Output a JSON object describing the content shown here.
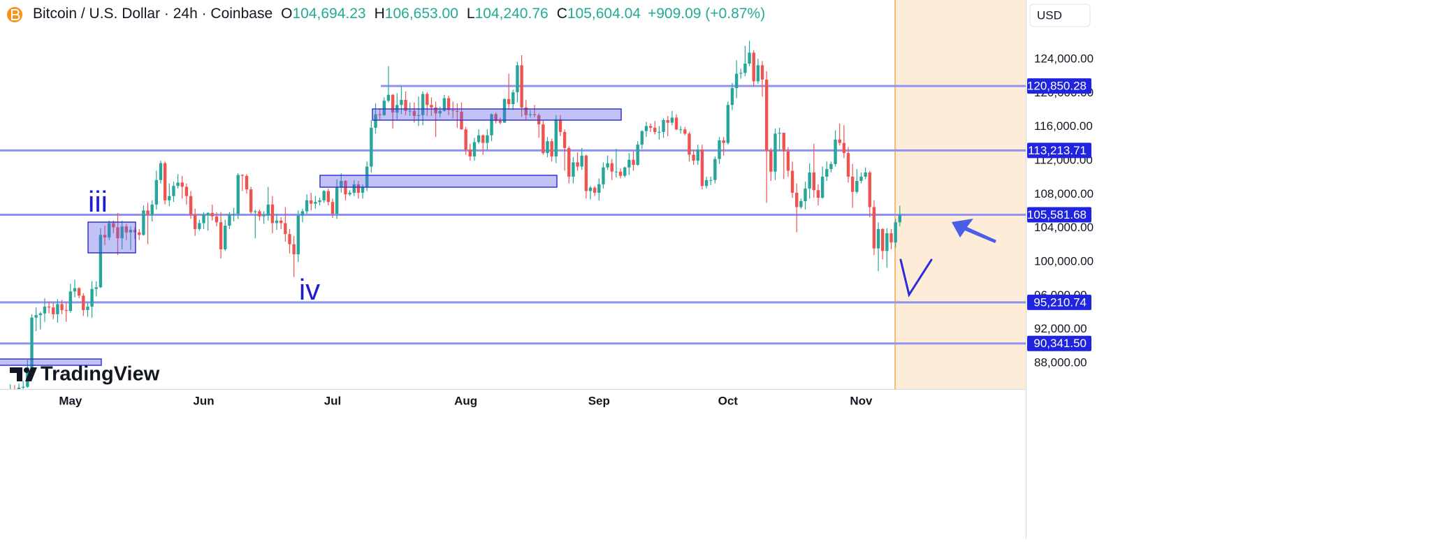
{
  "chart_data": {
    "type": "candlestick",
    "title": "Bitcoin / U.S. Dollar · 24h · Coinbase",
    "legend": [
      {
        "label": "O",
        "value": "104,694.23"
      },
      {
        "label": "H",
        "value": "106,653.00"
      },
      {
        "label": "L",
        "value": "104,240.76"
      },
      {
        "label": "C",
        "value": "105,604.04"
      }
    ],
    "change": "+909.09 (+0.87%)",
    "currency": "USD",
    "watermark": "TradingView",
    "annotations": [
      "iii",
      "iv"
    ],
    "up_color": "#26a69a",
    "down_color": "#ef5350",
    "level_color": "#8e92f2",
    "level_label_color": "#2124de",
    "xlim": [
      -2.4,
      236.3
    ],
    "xticks": [
      {
        "value": 14,
        "label": "May"
      },
      {
        "value": 45,
        "label": "Jun"
      },
      {
        "value": 75,
        "label": "Jul"
      },
      {
        "value": 106,
        "label": "Aug"
      },
      {
        "value": 137,
        "label": "Sep"
      },
      {
        "value": 167,
        "label": "Oct"
      },
      {
        "value": 198,
        "label": "Nov"
      }
    ],
    "ylim": [
      84938,
      131035
    ],
    "yticks": [
      {
        "value": 88000,
        "label": "88,000.00"
      },
      {
        "value": 92000,
        "label": "92,000.00"
      },
      {
        "value": 96000,
        "label": "96,000.00"
      },
      {
        "value": 100000,
        "label": "100,000.00"
      },
      {
        "value": 104000,
        "label": "104,000.00"
      },
      {
        "value": 108000,
        "label": "108,000.00"
      },
      {
        "value": 112000,
        "label": "112,000.00"
      },
      {
        "value": 116000,
        "label": "116,000.00"
      },
      {
        "value": 120000,
        "label": "120,000.00"
      },
      {
        "value": 124000,
        "label": "124,000.00"
      }
    ],
    "grid": false,
    "levels": [
      {
        "value": 120850.28,
        "label": "120,850.28"
      },
      {
        "value": 113213.71,
        "label": "113,213.71"
      },
      {
        "value": 105581.68,
        "label": "105,581.68"
      },
      {
        "value": 95210.74,
        "label": "95,210.74"
      },
      {
        "value": 90341.5,
        "label": "90,341.50"
      }
    ],
    "open": [
      84500,
      84900,
      84500,
      85100,
      85200,
      87500,
      93400,
      93700,
      93900,
      94700,
      94600,
      93800,
      95000,
      94300,
      94200,
      96500,
      96900,
      96000,
      94300,
      94700,
      96800,
      97000,
      103200,
      102900,
      104600,
      104100,
      102800,
      104200,
      103500,
      103800,
      103500,
      103200,
      106100,
      105600,
      106800,
      109700,
      111700,
      107300,
      107800,
      109000,
      109400,
      108900,
      107800,
      105600,
      103900,
      104600,
      105600,
      105800,
      105400,
      104700,
      101500,
      104300,
      105600,
      105700,
      110300,
      110200,
      108600,
      105900,
      106000,
      105400,
      105500,
      106800,
      104600,
      104900,
      104600,
      103300,
      102100,
      100900,
      105500,
      106000,
      107300,
      106900,
      107100,
      107300,
      108400,
      107100,
      105700,
      108800,
      109600,
      108000,
      108200,
      109200,
      108200,
      108900,
      111300,
      115900,
      117500,
      117400,
      119100,
      119800,
      117700,
      118600,
      119200,
      117900,
      117900,
      117300,
      117400,
      119900,
      118600,
      118300,
      117600,
      117900,
      119400,
      118000,
      117900,
      117800,
      115700,
      113300,
      112500,
      114200,
      115000,
      114100,
      115000,
      117500,
      116700,
      116500,
      119300,
      118700,
      120100,
      123300,
      118300,
      117400,
      117500,
      117400,
      116300,
      112900,
      114300,
      112500,
      116900,
      115400,
      113500,
      110100,
      111800,
      111300,
      112600,
      108400,
      108800,
      108200,
      109200,
      111200,
      111700,
      110700,
      110700,
      110200,
      111200,
      112100,
      111500,
      113900,
      115500,
      116100,
      115900,
      115400,
      115400,
      116800,
      116500,
      117100,
      115700,
      115700,
      115200,
      112700,
      112000,
      113300,
      109000,
      109700,
      109700,
      112200,
      114400,
      114100,
      118600,
      120600,
      122300,
      122400,
      123500,
      124800,
      121400,
      123300,
      121600,
      113200,
      110700,
      115200,
      115300,
      113100,
      110800,
      108200,
      106500,
      107200,
      108700,
      110600,
      108500,
      107600,
      110100,
      111000,
      111600,
      114500,
      114100,
      112900,
      110100,
      108300,
      109600,
      110100,
      110600,
      106500,
      101600,
      103900,
      101300,
      103400,
      102300,
      104694.23
    ],
    "high": [
      85500,
      85400,
      85600,
      85900,
      88400,
      93800,
      94600,
      94100,
      95700,
      95300,
      95200,
      95600,
      95500,
      95200,
      97400,
      97900,
      97000,
      96300,
      95200,
      97700,
      97700,
      104000,
      104300,
      104900,
      104900,
      105800,
      104900,
      104500,
      104200,
      104100,
      103900,
      106700,
      107000,
      107300,
      110800,
      112000,
      111900,
      109300,
      109500,
      110400,
      110200,
      109300,
      108400,
      106300,
      105000,
      105900,
      105900,
      106800,
      105900,
      105900,
      105000,
      105900,
      106400,
      110500,
      110400,
      110400,
      108900,
      106200,
      106200,
      106000,
      108900,
      107800,
      105600,
      105300,
      106500,
      103900,
      103100,
      106100,
      106300,
      108000,
      108200,
      107800,
      107600,
      108500,
      108700,
      107500,
      109800,
      110500,
      109700,
      108500,
      109700,
      109600,
      109200,
      111900,
      116800,
      118800,
      118200,
      119500,
      123200,
      119900,
      120000,
      120800,
      120200,
      118900,
      118900,
      119600,
      120200,
      120100,
      119500,
      119000,
      118400,
      119800,
      119700,
      119000,
      118800,
      118900,
      116000,
      114000,
      114700,
      115700,
      115100,
      115700,
      117600,
      117700,
      117100,
      119400,
      122300,
      120400,
      123700,
      124500,
      119200,
      118000,
      118600,
      117600,
      116800,
      114800,
      114600,
      117400,
      117400,
      115700,
      113700,
      112400,
      113000,
      113500,
      112700,
      109000,
      109000,
      109900,
      111800,
      112600,
      112200,
      113400,
      111100,
      111300,
      112900,
      113100,
      114300,
      115600,
      116600,
      116400,
      116700,
      116100,
      117000,
      117300,
      117900,
      117500,
      116100,
      116000,
      115400,
      113300,
      113900,
      113900,
      110100,
      110100,
      112500,
      114800,
      114800,
      119000,
      121200,
      123900,
      122900,
      125600,
      126200,
      125100,
      124100,
      123800,
      122600,
      113500,
      115800,
      115900,
      115300,
      113600,
      111900,
      109300,
      107500,
      109500,
      111700,
      114000,
      109200,
      111300,
      111900,
      111900,
      115600,
      116400,
      116200,
      113600,
      111600,
      111000,
      110600,
      111200,
      110800,
      107300,
      104700,
      104000,
      104000,
      103900,
      105100,
      106653
    ],
    "low": [
      84100,
      84000,
      84300,
      83900,
      85100,
      87200,
      91800,
      92000,
      92900,
      93900,
      93200,
      92800,
      93800,
      92900,
      94000,
      95800,
      95700,
      93600,
      93500,
      93400,
      95900,
      96900,
      102000,
      102600,
      103400,
      100800,
      101500,
      102600,
      101400,
      102700,
      102600,
      103100,
      102100,
      104800,
      106200,
      109300,
      106800,
      106600,
      107100,
      108700,
      107500,
      106800,
      105100,
      103100,
      103700,
      103900,
      103700,
      104900,
      104200,
      100400,
      101300,
      103900,
      104800,
      105100,
      108400,
      108100,
      105700,
      102800,
      104900,
      104500,
      104900,
      103400,
      103800,
      103900,
      102400,
      101000,
      98200,
      100000,
      104700,
      105700,
      106100,
      106300,
      106700,
      107000,
      106700,
      105200,
      105100,
      108200,
      107300,
      107800,
      107800,
      107500,
      107500,
      108400,
      110600,
      115200,
      116900,
      117300,
      118900,
      115800,
      116900,
      117500,
      117400,
      117300,
      116500,
      116100,
      116200,
      117300,
      117300,
      114800,
      117100,
      117800,
      117400,
      117000,
      115900,
      115700,
      112700,
      112000,
      112000,
      114000,
      112700,
      113300,
      114300,
      116400,
      116300,
      116500,
      118100,
      118000,
      118900,
      117200,
      116800,
      117100,
      117100,
      114700,
      112700,
      112400,
      111900,
      111700,
      114900,
      110800,
      109300,
      109300,
      110800,
      110900,
      107500,
      107400,
      107800,
      107300,
      108700,
      110900,
      109700,
      110000,
      109900,
      110000,
      110300,
      110800,
      111400,
      113400,
      114800,
      115400,
      115100,
      114500,
      114700,
      114900,
      116200,
      115600,
      115200,
      115000,
      111900,
      111500,
      111500,
      108600,
      108700,
      109100,
      109300,
      111600,
      112600,
      113900,
      118000,
      119400,
      121700,
      122000,
      123200,
      120800,
      121100,
      119600,
      107000,
      109600,
      109700,
      113200,
      109800,
      110100,
      107600,
      103500,
      106300,
      106200,
      107500,
      107600,
      106700,
      107500,
      109600,
      110600,
      111300,
      113800,
      112300,
      109400,
      106400,
      108100,
      109300,
      109800,
      105300,
      100800,
      98900,
      100300,
      99300,
      101500,
      101700,
      104240.76
    ],
    "close": [
      84900,
      84500,
      85100,
      85200,
      87500,
      93400,
      93700,
      93900,
      94700,
      94600,
      93800,
      95000,
      94300,
      94200,
      96500,
      96900,
      96000,
      94300,
      94700,
      96800,
      97000,
      103200,
      102900,
      104600,
      104100,
      102800,
      104200,
      103500,
      103800,
      103500,
      103200,
      106100,
      105600,
      106800,
      109700,
      111700,
      107300,
      107800,
      109000,
      109400,
      108900,
      107800,
      105600,
      103900,
      104600,
      105600,
      105800,
      105400,
      104700,
      101500,
      104300,
      105600,
      105700,
      110300,
      110200,
      108600,
      105900,
      106000,
      105400,
      105500,
      106800,
      104600,
      104900,
      104600,
      103300,
      102100,
      100900,
      105500,
      106000,
      107300,
      106900,
      107100,
      107300,
      108400,
      107100,
      105700,
      108800,
      109600,
      108000,
      108200,
      109200,
      108200,
      108900,
      111300,
      115900,
      117500,
      117400,
      119100,
      119800,
      117700,
      118600,
      119200,
      117900,
      117900,
      117300,
      117400,
      119900,
      118600,
      118300,
      117600,
      117900,
      119400,
      118000,
      117900,
      117800,
      115700,
      113300,
      112500,
      114200,
      115000,
      114100,
      115000,
      117500,
      116700,
      116500,
      119300,
      118700,
      120100,
      123300,
      118300,
      117400,
      117500,
      117400,
      116300,
      112900,
      114300,
      112500,
      116900,
      115400,
      113500,
      110100,
      111800,
      111300,
      112600,
      108400,
      108800,
      108200,
      109200,
      111200,
      111700,
      110700,
      110700,
      110200,
      111200,
      112100,
      111500,
      113900,
      115500,
      116100,
      115900,
      115400,
      115400,
      116800,
      116500,
      117100,
      115700,
      115700,
      115200,
      112700,
      112000,
      113300,
      109000,
      109700,
      109700,
      112200,
      114400,
      114100,
      118600,
      120600,
      122300,
      122400,
      123500,
      124800,
      121400,
      123300,
      121600,
      113200,
      110700,
      115200,
      115300,
      113100,
      110800,
      108200,
      106500,
      107200,
      108700,
      110600,
      108500,
      107600,
      110100,
      111000,
      111600,
      114500,
      114100,
      112900,
      110100,
      108300,
      109600,
      110100,
      110600,
      106500,
      101600,
      103900,
      101300,
      103400,
      102300,
      104694.23,
      105604.04
    ]
  }
}
